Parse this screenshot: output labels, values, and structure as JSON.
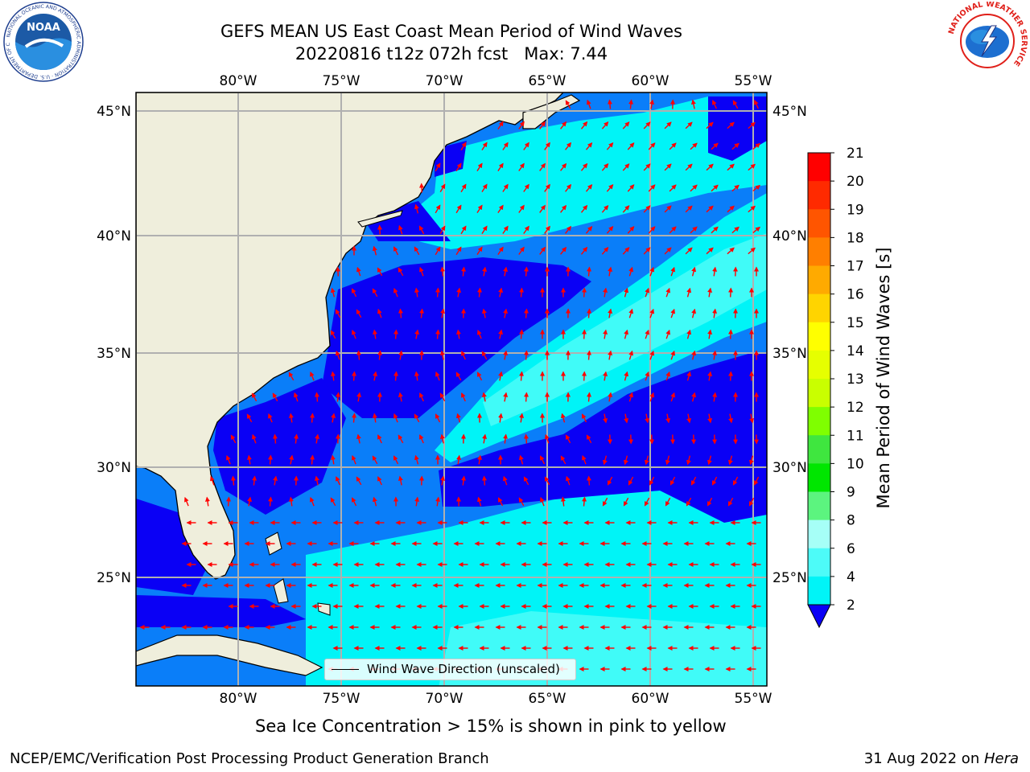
{
  "title": {
    "line1": "GEFS MEAN US East Coast Mean Period of Wind Waves",
    "line2": "20220816 t12z 072h fcst   Max: 7.44"
  },
  "map": {
    "longitude_ticks": [
      "80°W",
      "75°W",
      "70°W",
      "65°W",
      "60°W",
      "55°W"
    ],
    "latitude_ticks": [
      "45°N",
      "40°N",
      "35°N",
      "30°N",
      "25°N"
    ],
    "legend_label": "Wind Wave Direction (unscaled)",
    "colors": {
      "land": "#efeedc",
      "ocean_low": "#0a00f5",
      "band_2_4": "#0a7ef9",
      "band_4_6": "#00f4f7",
      "band_6_8": "#40fbf8",
      "vector": "#ff0000",
      "grid": "#b0b0b0"
    }
  },
  "colorbar": {
    "title": "Mean Period of Wind Waves [s]",
    "labels": [
      "21",
      "20",
      "19",
      "18",
      "17",
      "16",
      "15",
      "14",
      "13",
      "12",
      "11",
      "10",
      "9",
      "8",
      "6",
      "4",
      "2"
    ],
    "colors": [
      "#ff0000",
      "#ff2a00",
      "#ff5500",
      "#ff7f00",
      "#ffaa00",
      "#ffd400",
      "#ffff00",
      "#e6ff00",
      "#c9ff00",
      "#7fff00",
      "#3fe63f",
      "#00e600",
      "#5cf47f",
      "#a6fff7",
      "#4dfbf8",
      "#00f4f7",
      "#0a7ef9"
    ],
    "underflow_color": "#0a00f5"
  },
  "subtitle": "Sea Ice Concentration > 15% is shown in pink to yellow",
  "footer": {
    "credit": "NCEP/EMC/Verification Post Processing Product Generation Branch",
    "date_text": "31 Aug 2022 on ",
    "machine": "Hera"
  },
  "logos": {
    "noaa_text": "NOAA",
    "noaa_ring": "NATIONAL OCEANIC AND ATMOSPHERIC ADMINISTRATION · U.S. DEPARTMENT OF COMMERCE",
    "nws_ring": "NATIONAL WEATHER SERVICE"
  }
}
